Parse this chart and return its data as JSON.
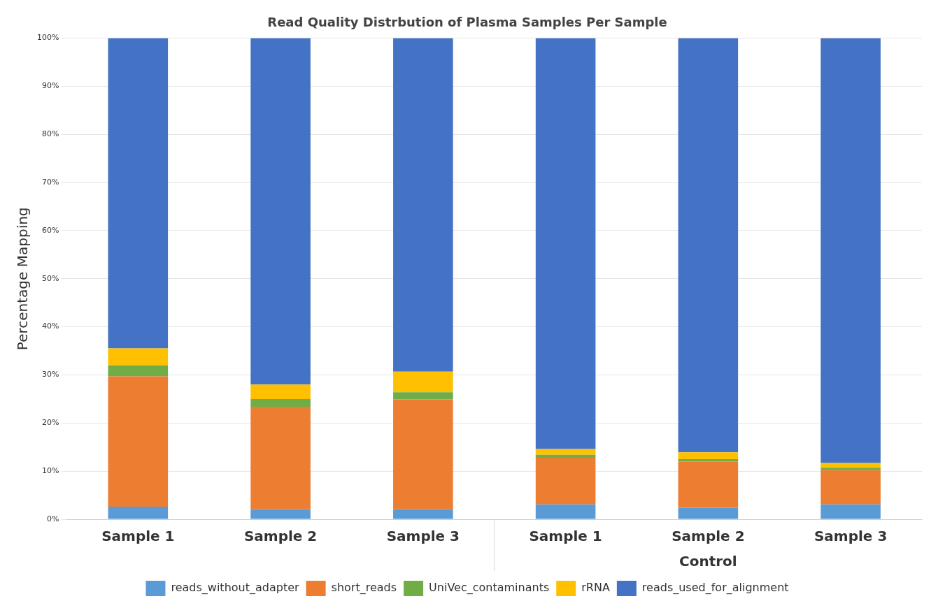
{
  "chart_data": {
    "type": "bar",
    "stacked": true,
    "title": "Read Quality Distrbution of Plasma Samples Per Sample",
    "ylabel": "Percentage Mapping",
    "categories": [
      "Sample 1",
      "Sample 2",
      "Sample 3",
      "Sample 1",
      "Sample 2",
      "Sample 3"
    ],
    "series": [
      {
        "name": "reads_without_adapter",
        "color": "#5b9bd5",
        "values": [
          2.6,
          2.1,
          2.1,
          3.1,
          2.4,
          3.1
        ]
      },
      {
        "name": "short_reads",
        "color": "#ed7d31",
        "values": [
          27.1,
          21.3,
          22.8,
          9.7,
          9.6,
          7.1
        ]
      },
      {
        "name": "UniVec_contaminants",
        "color": "#70ad47",
        "values": [
          2.3,
          1.6,
          1.5,
          0.6,
          0.5,
          0.5
        ]
      },
      {
        "name": "rRNA",
        "color": "#ffc000",
        "values": [
          3.5,
          3.0,
          4.3,
          1.2,
          1.4,
          1.0
        ]
      },
      {
        "name": "reads_used_for_alignment",
        "color": "#4472c4",
        "values": [
          64.5,
          72.0,
          69.3,
          85.4,
          86.1,
          88.3
        ]
      }
    ],
    "ylim": [
      0,
      100
    ],
    "yticks": [
      {
        "value": 0,
        "label": "0%"
      },
      {
        "value": 10,
        "label": "10%"
      },
      {
        "value": 20,
        "label": "20%"
      },
      {
        "value": 30,
        "label": "30%"
      },
      {
        "value": 40,
        "label": "40%"
      },
      {
        "value": 50,
        "label": "50%"
      },
      {
        "value": 60,
        "label": "60%"
      },
      {
        "value": 70,
        "label": "70%"
      },
      {
        "value": 80,
        "label": "80%"
      },
      {
        "value": 90,
        "label": "90%"
      },
      {
        "value": 100,
        "label": "100%"
      }
    ],
    "annotations": [
      "Control"
    ],
    "grid": "y",
    "legend": "bottom"
  }
}
